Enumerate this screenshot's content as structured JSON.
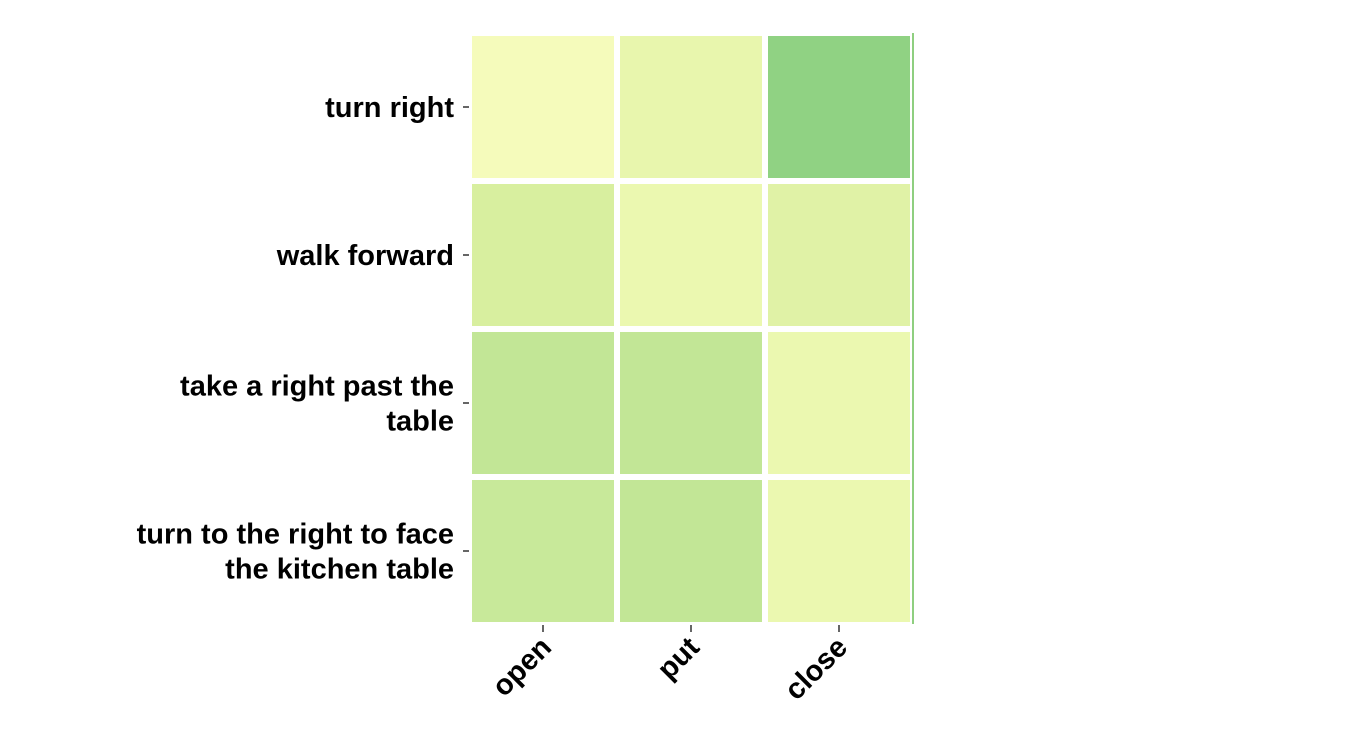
{
  "chart_data": {
    "type": "heatmap",
    "title": "",
    "xlabel": "",
    "ylabel": "",
    "columns": [
      "open",
      "put",
      "close"
    ],
    "rows": [
      {
        "lines": [
          "turn right"
        ]
      },
      {
        "lines": [
          "walk forward"
        ]
      },
      {
        "lines": [
          "take a right past the",
          "table"
        ]
      },
      {
        "lines": [
          "turn to the right to face",
          "the kitchen table"
        ]
      }
    ],
    "cell_colors": [
      [
        "#f5fbbb",
        "#e8f6ad",
        "#90d283"
      ],
      [
        "#d8ef9f",
        "#ebf8b0",
        "#e0f2a6"
      ],
      [
        "#c2e696",
        "#c2e696",
        "#ebf8b0"
      ],
      [
        "#c8e99a",
        "#c2e696",
        "#ebf8b0"
      ]
    ],
    "colorbar": false,
    "legend": "none",
    "grid": false
  }
}
